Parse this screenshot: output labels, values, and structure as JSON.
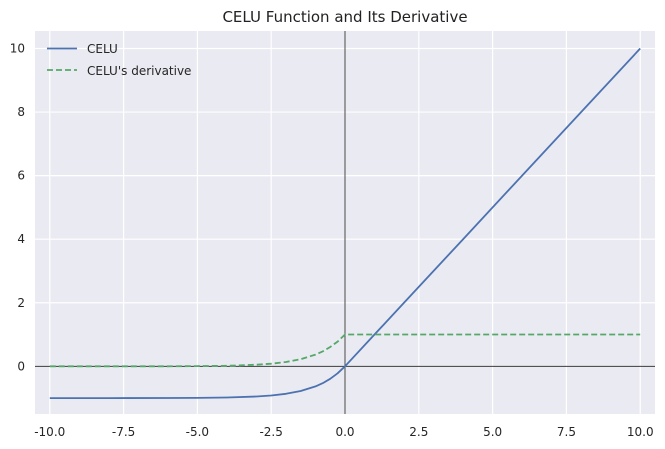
{
  "chart_data": {
    "type": "line",
    "title": "CELU Function and Its Derivative",
    "xlabel": "",
    "ylabel": "",
    "xlim": [
      -10.5,
      10.5
    ],
    "ylim": [
      -1.5,
      10.55
    ],
    "x_ticks": [
      -10.0,
      -7.5,
      -5.0,
      -2.5,
      0.0,
      2.5,
      5.0,
      7.5,
      10.0
    ],
    "x_tick_labels": [
      "-10.0",
      "-7.5",
      "-5.0",
      "-2.5",
      "0.0",
      "2.5",
      "5.0",
      "7.5",
      "10.0"
    ],
    "y_ticks": [
      0,
      2,
      4,
      6,
      8,
      10
    ],
    "y_tick_labels": [
      "0",
      "2",
      "4",
      "6",
      "8",
      "10"
    ],
    "grid": true,
    "legend_position": "top-left",
    "reference_lines": {
      "x": 0,
      "y": 0
    },
    "series": [
      {
        "name": "CELU",
        "style": "solid",
        "color": "#4c72b0",
        "x": [
          -10,
          -8,
          -6,
          -5,
          -4,
          -3,
          -2.5,
          -2,
          -1.5,
          -1,
          -0.75,
          -0.5,
          -0.25,
          0,
          1,
          2,
          4,
          6,
          8,
          10
        ],
        "y": [
          -1.0,
          -1.0,
          -0.998,
          -0.993,
          -0.982,
          -0.95,
          -0.918,
          -0.865,
          -0.777,
          -0.632,
          -0.528,
          -0.393,
          -0.221,
          0,
          1,
          2,
          4,
          6,
          8,
          10
        ]
      },
      {
        "name": "CELU's derivative",
        "style": "dashed",
        "color": "#55a868",
        "x": [
          -10,
          -8,
          -6,
          -5,
          -4,
          -3,
          -2.5,
          -2,
          -1.5,
          -1,
          -0.75,
          -0.5,
          -0.25,
          0,
          2,
          4,
          6,
          8,
          10
        ],
        "y": [
          0.0,
          0.0,
          0.002,
          0.007,
          0.018,
          0.05,
          0.082,
          0.135,
          0.223,
          0.368,
          0.472,
          0.607,
          0.779,
          1,
          1,
          1,
          1,
          1,
          1
        ]
      }
    ]
  }
}
